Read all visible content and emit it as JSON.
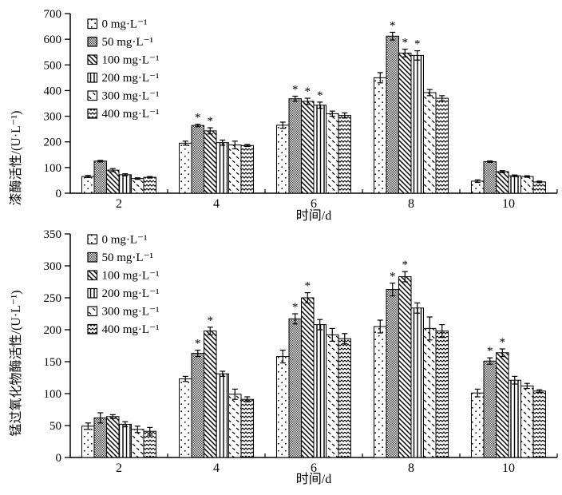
{
  "figure": {
    "background": "#ffffff",
    "ink": "#000000",
    "significance_marker": "*"
  },
  "chart_data": [
    {
      "type": "bar",
      "title": "",
      "ylabel": "漆酶活性/(U·L⁻¹)",
      "xlabel": "时间/d",
      "categories": [
        "2",
        "4",
        "6",
        "8",
        "10"
      ],
      "ylim": [
        0,
        700
      ],
      "ytick_step": 100,
      "grid": false,
      "legend_position": "upper-left-inside",
      "series": [
        {
          "name": "0 mg·L⁻¹",
          "pattern": "dots",
          "values": [
            65,
            195,
            265,
            450,
            47
          ],
          "errors": [
            4,
            8,
            12,
            20,
            5
          ],
          "significant": [
            0,
            0,
            0,
            0,
            0
          ]
        },
        {
          "name": "50 mg·L⁻¹",
          "pattern": "checker",
          "values": [
            125,
            264,
            368,
            612,
            123
          ],
          "errors": [
            3,
            5,
            10,
            15,
            3
          ],
          "significant": [
            0,
            1,
            1,
            1,
            0
          ]
        },
        {
          "name": "100 mg·L⁻¹",
          "pattern": "bslash",
          "values": [
            90,
            243,
            358,
            546,
            84
          ],
          "errors": [
            6,
            12,
            12,
            15,
            4
          ],
          "significant": [
            0,
            1,
            1,
            1,
            0
          ]
        },
        {
          "name": "200 mg·L⁻¹",
          "pattern": "vlines",
          "values": [
            72,
            197,
            343,
            537,
            68
          ],
          "errors": [
            4,
            10,
            12,
            18,
            3
          ],
          "significant": [
            0,
            0,
            1,
            1,
            0
          ]
        },
        {
          "name": "300 mg·L⁻¹",
          "pattern": "dashes",
          "values": [
            57,
            188,
            310,
            392,
            65
          ],
          "errors": [
            3,
            15,
            10,
            12,
            3
          ],
          "significant": [
            0,
            0,
            0,
            0,
            0
          ]
        },
        {
          "name": "400 mg·L⁻¹",
          "pattern": "zigzag",
          "values": [
            62,
            186,
            303,
            370,
            44
          ],
          "errors": [
            3,
            4,
            10,
            10,
            3
          ],
          "significant": [
            0,
            0,
            0,
            0,
            0
          ]
        }
      ]
    },
    {
      "type": "bar",
      "title": "",
      "ylabel": "锰过氧化物酶活性/(U·L⁻¹)",
      "xlabel": "时间/d",
      "categories": [
        "2",
        "4",
        "6",
        "8",
        "10"
      ],
      "ylim": [
        0,
        350
      ],
      "ytick_step": 50,
      "grid": false,
      "legend_position": "upper-left-inside",
      "series": [
        {
          "name": "0 mg·L⁻¹",
          "pattern": "dots",
          "values": [
            49,
            123,
            158,
            205,
            101
          ],
          "errors": [
            5,
            4,
            10,
            10,
            6
          ],
          "significant": [
            0,
            0,
            0,
            0,
            0
          ]
        },
        {
          "name": "50 mg·L⁻¹",
          "pattern": "checker",
          "values": [
            62,
            163,
            217,
            263,
            151
          ],
          "errors": [
            8,
            5,
            8,
            10,
            5
          ],
          "significant": [
            0,
            1,
            1,
            1,
            1
          ]
        },
        {
          "name": "100 mg·L⁻¹",
          "pattern": "bslash",
          "values": [
            64,
            198,
            250,
            283,
            164
          ],
          "errors": [
            3,
            6,
            8,
            8,
            6
          ],
          "significant": [
            0,
            1,
            1,
            1,
            1
          ]
        },
        {
          "name": "200 mg·L⁻¹",
          "pattern": "vlines",
          "values": [
            52,
            131,
            208,
            234,
            121
          ],
          "errors": [
            4,
            4,
            8,
            8,
            6
          ],
          "significant": [
            0,
            0,
            0,
            0,
            0
          ]
        },
        {
          "name": "300 mg·L⁻¹",
          "pattern": "dashes",
          "values": [
            44,
            99,
            192,
            202,
            112
          ],
          "errors": [
            5,
            8,
            10,
            18,
            4
          ],
          "significant": [
            0,
            0,
            0,
            0,
            0
          ]
        },
        {
          "name": "400 mg·L⁻¹",
          "pattern": "zigzag",
          "values": [
            41,
            91,
            186,
            198,
            104
          ],
          "errors": [
            6,
            4,
            8,
            10,
            2
          ],
          "significant": [
            0,
            0,
            0,
            0,
            0
          ]
        }
      ]
    }
  ]
}
